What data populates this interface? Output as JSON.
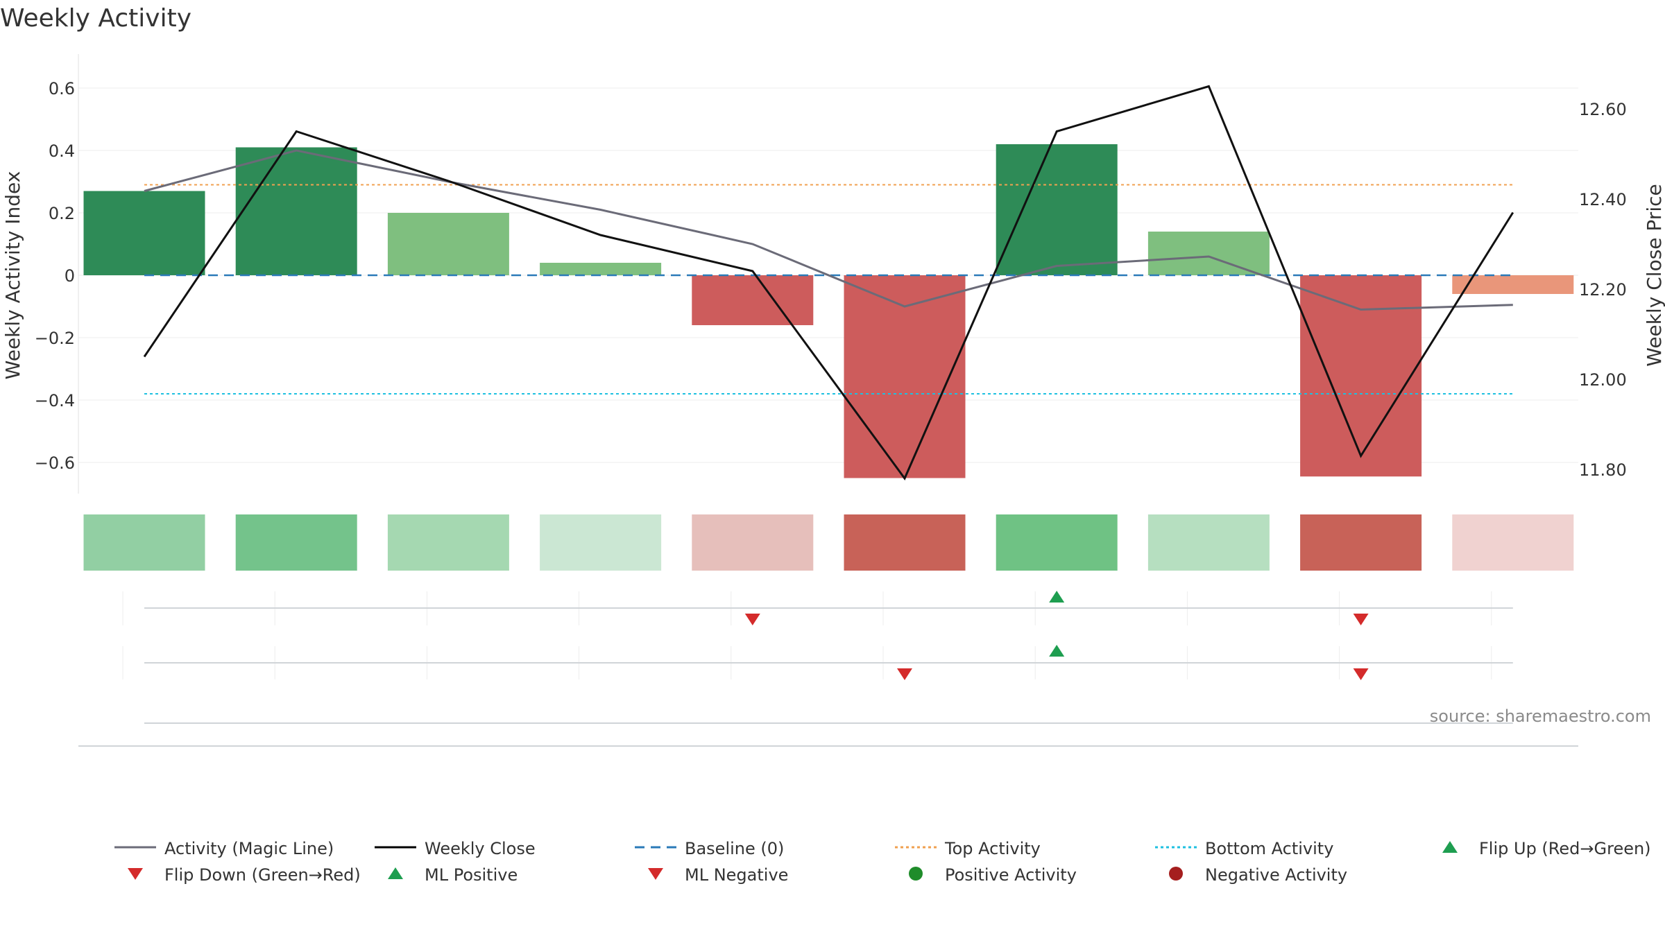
{
  "chart_data": {
    "type": "bar+line",
    "title": "Weekly Activity",
    "ylabel_left": "Weekly Activity Index",
    "ylabel_right": "Weekly Close Price",
    "ylim_left": [
      -0.7,
      0.7
    ],
    "ylim_right": [
      11.73,
      12.68
    ],
    "yticks_left": [
      0.6,
      0.4,
      0.2,
      0,
      -0.2,
      -0.4,
      -0.6
    ],
    "ytick_labels_left": [
      "0.6",
      "0.4",
      "0.2",
      "0",
      "−0.2",
      "−0.4",
      "−0.6"
    ],
    "yticks_right": [
      12.6,
      12.4,
      12.2,
      12.0,
      11.8
    ],
    "ytick_labels_right": [
      "12.60",
      "12.40",
      "12.20",
      "12.00",
      "11.80"
    ],
    "weeks": 10,
    "activity_values": [
      0.27,
      0.41,
      0.2,
      0.04,
      -0.16,
      -0.65,
      0.42,
      0.14,
      -0.645,
      -0.06
    ],
    "bar_colors": [
      "#2e8b57",
      "#2e8b57",
      "#7fbf7f",
      "#7fbf7f",
      "#cd5c5c",
      "#cd5c5c",
      "#2e8b57",
      "#7fbf7f",
      "#cd5c5c",
      "#e9967a"
    ],
    "heat_colors": [
      "#92cfa3",
      "#74c38b",
      "#a5d8b1",
      "#cbe7d3",
      "#e6bfbb",
      "#c86258",
      "#6fc284",
      "#b6dfc0",
      "#c86258",
      "#f0d2d0"
    ],
    "magic_line": [
      0.27,
      0.4,
      0.3,
      0.21,
      0.1,
      -0.1,
      0.03,
      0.06,
      -0.11,
      -0.095
    ],
    "weekly_close": [
      12.05,
      12.55,
      12.44,
      12.32,
      12.24,
      11.78,
      12.55,
      12.65,
      11.83,
      12.37
    ],
    "baseline": 0,
    "top_activity": 0.29,
    "bottom_activity": -0.38,
    "flip_down_weeks": [
      4,
      8
    ],
    "flip_up_weeks": [
      6
    ],
    "ml_positive_weeks": [
      6
    ],
    "ml_negative_weeks": [
      5,
      8
    ],
    "source": "source: sharemaestro.com",
    "legend": [
      {
        "label": "Activity (Magic Line)",
        "kind": "line",
        "color": "#6b6b78",
        "dash": ""
      },
      {
        "label": "Weekly Close",
        "kind": "line",
        "color": "#000000",
        "dash": ""
      },
      {
        "label": "Baseline (0)",
        "kind": "line",
        "color": "#2a7ab8",
        "dash": "14,9"
      },
      {
        "label": "Top Activity",
        "kind": "line",
        "color": "#f0a050",
        "dash": "4,4"
      },
      {
        "label": "Bottom Activity",
        "kind": "line",
        "color": "#1ec0e0",
        "dash": "4,4"
      },
      {
        "label": "Flip Up (Red→Green)",
        "kind": "tri-up",
        "color": "#1e9e50"
      },
      {
        "label": "Flip Down (Green→Red)",
        "kind": "tri-down",
        "color": "#d42b2b"
      },
      {
        "label": "ML Positive",
        "kind": "tri-up",
        "color": "#1e9e50"
      },
      {
        "label": "ML Negative",
        "kind": "tri-down",
        "color": "#d42b2b"
      },
      {
        "label": "Positive Activity",
        "kind": "dot",
        "color": "#1f8c2a"
      },
      {
        "label": "Negative Activity",
        "kind": "dot",
        "color": "#a51e1e"
      }
    ]
  }
}
